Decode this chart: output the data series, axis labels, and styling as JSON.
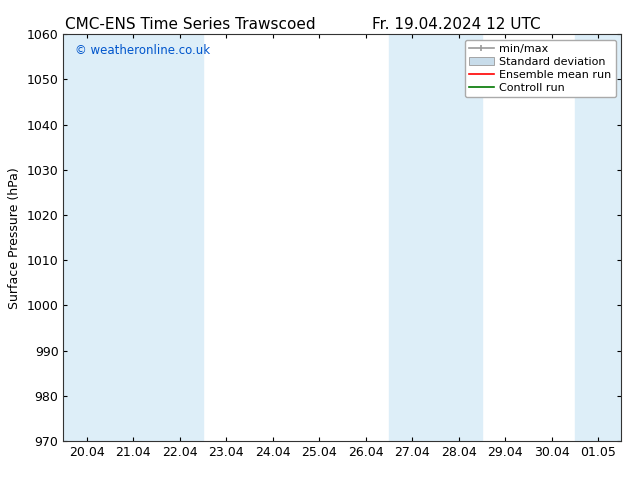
{
  "title_left": "CMC-ENS Time Series Trawscoed",
  "title_right": "Fr. 19.04.2024 12 UTC",
  "ylabel": "Surface Pressure (hPa)",
  "ylim": [
    970,
    1060
  ],
  "yticks": [
    970,
    980,
    990,
    1000,
    1010,
    1020,
    1030,
    1040,
    1050,
    1060
  ],
  "xlabels": [
    "20.04",
    "21.04",
    "22.04",
    "23.04",
    "24.04",
    "25.04",
    "26.04",
    "27.04",
    "28.04",
    "29.04",
    "30.04",
    "01.05"
  ],
  "x_values": [
    0,
    1,
    2,
    3,
    4,
    5,
    6,
    7,
    8,
    9,
    10,
    11
  ],
  "band_color": "#ddeef8",
  "watermark": "© weatheronline.co.uk",
  "watermark_color": "#0055cc",
  "legend_labels": [
    "min/max",
    "Standard deviation",
    "Ensemble mean run",
    "Controll run"
  ],
  "minmax_color": "#999999",
  "std_color": "#c8dcea",
  "ensemble_color": "#ff0000",
  "control_color": "#007700",
  "background_color": "#ffffff",
  "title_fontsize": 11,
  "tick_fontsize": 9,
  "ylabel_fontsize": 9,
  "legend_fontsize": 8
}
